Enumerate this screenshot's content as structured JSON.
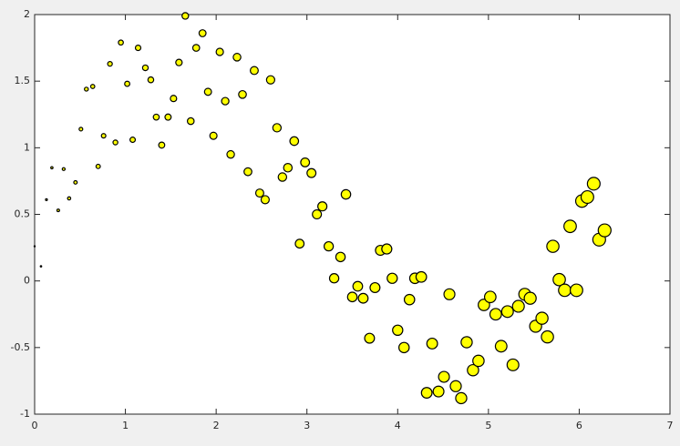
{
  "chart_data": {
    "type": "scatter",
    "color": "#ffff00",
    "x": [
      0,
      0.07,
      0.13,
      0.19,
      0.26,
      0.32,
      0.38,
      0.45,
      0.51,
      0.57,
      0.64,
      0.7,
      0.76,
      0.83,
      0.89,
      0.95,
      1.02,
      1.08,
      1.14,
      1.22,
      1.28,
      1.34,
      1.4,
      1.47,
      1.53,
      1.59,
      1.66,
      1.72,
      1.78,
      1.85,
      1.91,
      1.97,
      2.04,
      2.1,
      2.16,
      2.23,
      2.29,
      2.35,
      2.42,
      2.48,
      2.54,
      2.6,
      2.67,
      2.73,
      2.79,
      2.86,
      2.92,
      2.98,
      3.05,
      3.11,
      3.17,
      3.24,
      3.3,
      3.37,
      3.43,
      3.5,
      3.56,
      3.62,
      3.69,
      3.75,
      3.81,
      3.88,
      3.94,
      4.0,
      4.07,
      4.13,
      4.19,
      4.26,
      4.32,
      4.38,
      4.45,
      4.51,
      4.57,
      4.64,
      4.7,
      4.76,
      4.83,
      4.89,
      4.95,
      5.02,
      5.08,
      5.14,
      5.21,
      5.27,
      5.33,
      5.4,
      5.46,
      5.52,
      5.59,
      5.65,
      5.71,
      5.78,
      5.84,
      5.9,
      5.97,
      6.03,
      6.09,
      6.16,
      6.22,
      6.28
    ],
    "y": [
      0.26,
      0.11,
      0.61,
      0.85,
      0.53,
      0.84,
      0.62,
      0.74,
      1.14,
      1.44,
      1.46,
      0.86,
      1.09,
      1.63,
      1.04,
      1.79,
      1.48,
      1.06,
      1.75,
      1.6,
      1.51,
      1.23,
      1.02,
      1.23,
      1.37,
      1.64,
      1.99,
      1.2,
      1.75,
      1.86,
      1.42,
      1.09,
      1.72,
      1.35,
      0.95,
      1.68,
      1.4,
      0.82,
      1.58,
      0.66,
      0.61,
      1.51,
      1.15,
      0.78,
      0.85,
      1.05,
      0.28,
      0.89,
      0.81,
      0.5,
      0.56,
      0.26,
      0.02,
      0.18,
      0.65,
      -0.12,
      -0.04,
      -0.13,
      -0.43,
      -0.05,
      0.23,
      0.24,
      0.02,
      -0.37,
      -0.5,
      -0.14,
      0.02,
      0.03,
      -0.84,
      -0.47,
      -0.83,
      -0.72,
      -0.1,
      -0.79,
      -0.88,
      -0.46,
      -0.67,
      -0.6,
      -0.18,
      -0.12,
      -0.25,
      -0.49,
      -0.23,
      -0.63,
      -0.19,
      -0.1,
      -0.13,
      -0.34,
      -0.28,
      -0.42,
      0.26,
      0.01,
      -0.07,
      0.41,
      -0.07,
      0.6,
      0.63,
      0.73,
      0.31,
      0.38
    ],
    "xlim": [
      0,
      7
    ],
    "ylim": [
      -1,
      2
    ],
    "xticks": [
      0,
      1,
      2,
      3,
      4,
      5,
      6,
      7
    ],
    "yticks": [
      -1,
      -0.5,
      0,
      0.5,
      1,
      1.5,
      2
    ]
  }
}
